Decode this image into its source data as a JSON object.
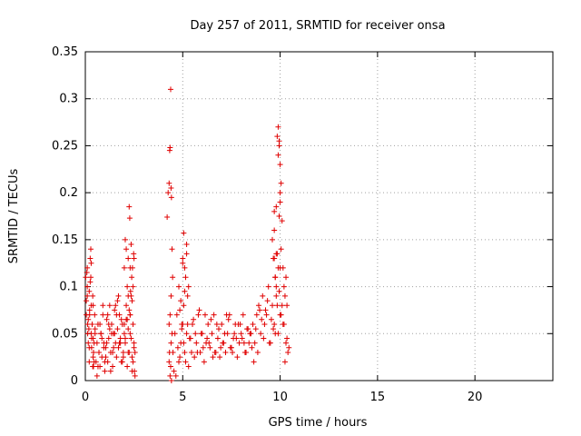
{
  "chart_data": {
    "type": "scatter",
    "title": "Day 257 of 2011, SRMTID for receiver onsa",
    "xlabel": "GPS time / hours",
    "ylabel": "SRMTID / TECUs",
    "xlim": [
      0,
      24
    ],
    "ylim": [
      0,
      0.35
    ],
    "xticks": [
      0,
      5,
      10,
      15,
      20
    ],
    "xtick_labels": [
      "0",
      "5",
      "10",
      "15",
      "20"
    ],
    "yticks": [
      0,
      0.05,
      0.1,
      0.15,
      0.2,
      0.25,
      0.3,
      0.35
    ],
    "ytick_labels": [
      "0",
      "0.05",
      "0.1",
      "0.15",
      "0.2",
      "0.25",
      "0.3",
      "0.35"
    ],
    "grid": true,
    "marker": "+",
    "color": "#e00000",
    "series": [
      {
        "x": [
          0.02,
          0.05,
          0.08,
          0.1,
          0.12,
          0.15,
          0.18,
          0.2,
          0.22,
          0.25,
          0.28,
          0.3,
          0.32,
          0.35,
          0.38,
          0.4,
          0.42,
          0.45,
          0.48,
          0.5,
          0.05,
          0.1,
          0.15,
          0.2,
          0.25,
          0.3,
          0.35,
          0.4,
          0.45,
          0.5,
          0.1,
          0.2,
          0.3,
          0.4,
          0.12,
          0.22,
          0.32,
          0.42,
          0.28,
          0.38,
          0.55,
          0.6,
          0.65,
          0.7,
          0.75,
          0.8,
          0.85,
          0.9,
          0.95,
          1.0,
          1.05,
          1.1,
          1.15,
          1.2,
          1.25,
          1.3,
          1.35,
          1.4,
          1.45,
          1.5,
          1.55,
          1.6,
          1.65,
          1.7,
          1.75,
          1.8,
          1.85,
          1.9,
          1.95,
          2.0,
          2.05,
          2.1,
          2.15,
          2.2,
          2.25,
          2.3,
          2.35,
          2.4,
          2.45,
          2.5,
          0.6,
          0.7,
          0.8,
          0.9,
          1.0,
          1.1,
          1.2,
          1.3,
          1.4,
          1.5,
          1.6,
          1.7,
          1.8,
          1.9,
          2.0,
          2.1,
          2.2,
          2.3,
          2.4,
          2.5,
          0.65,
          0.85,
          1.05,
          1.25,
          1.45,
          1.65,
          1.85,
          2.05,
          2.25,
          2.45,
          0.75,
          0.95,
          1.15,
          1.35,
          1.55,
          1.75,
          1.95,
          2.15,
          2.35,
          2.55,
          2.0,
          2.05,
          2.1,
          2.15,
          2.2,
          2.25,
          2.28,
          2.3,
          2.32,
          2.35,
          2.38,
          2.4,
          2.42,
          2.45,
          2.48,
          2.5,
          2.52,
          2.55,
          2.2,
          2.3,
          4.2,
          4.25,
          4.3,
          4.33,
          4.35,
          4.38,
          4.4,
          4.42,
          4.45,
          4.48,
          4.3,
          4.35,
          4.4,
          4.45,
          4.3,
          4.35,
          4.4,
          4.32,
          4.38,
          4.42,
          4.5,
          4.6,
          4.7,
          4.8,
          4.9,
          5.0,
          5.1,
          5.2,
          5.3,
          5.4,
          5.5,
          5.6,
          5.7,
          5.8,
          5.9,
          6.0,
          6.1,
          6.2,
          6.3,
          6.4,
          6.5,
          6.6,
          6.7,
          6.8,
          6.9,
          7.0,
          7.1,
          7.2,
          7.3,
          7.4,
          7.5,
          7.6,
          7.7,
          7.8,
          7.9,
          8.0,
          8.1,
          8.2,
          8.3,
          8.4,
          4.55,
          4.75,
          4.95,
          5.15,
          5.35,
          5.55,
          5.75,
          5.95,
          6.15,
          6.35,
          6.55,
          6.75,
          6.95,
          7.15,
          7.35,
          7.55,
          7.75,
          7.95,
          8.15,
          8.35,
          4.65,
          4.85,
          5.05,
          5.25,
          5.45,
          5.65,
          5.85,
          6.05,
          6.25,
          6.45,
          6.65,
          6.85,
          7.05,
          7.25,
          7.45,
          7.65,
          7.85,
          8.05,
          8.25,
          8.45,
          4.8,
          5.0,
          5.2,
          5.05,
          5.15,
          5.25,
          4.9,
          5.1,
          5.3,
          4.95,
          5.05,
          5.2,
          5.1,
          5.0,
          4.85,
          8.5,
          8.6,
          8.7,
          8.8,
          8.9,
          9.0,
          9.1,
          9.2,
          9.3,
          9.4,
          9.5,
          9.6,
          9.7,
          9.8,
          9.9,
          10.0,
          10.1,
          10.2,
          10.3,
          10.4,
          8.55,
          8.75,
          8.95,
          9.15,
          9.35,
          9.55,
          9.75,
          9.95,
          10.15,
          10.35,
          8.65,
          8.85,
          9.05,
          9.25,
          9.45,
          9.65,
          9.85,
          10.05,
          10.25,
          10.45,
          9.6,
          9.65,
          9.7,
          9.75,
          9.8,
          9.85,
          9.9,
          9.95,
          10.0,
          10.05,
          10.1,
          10.15,
          10.2,
          10.25,
          10.3,
          10.35,
          9.7,
          9.8,
          9.9,
          10.0,
          9.95,
          10.0,
          10.05,
          9.9,
          9.85,
          9.95,
          10.0,
          9.75,
          9.8,
          9.7
        ],
        "y": [
          0.11,
          0.07,
          0.115,
          0.09,
          0.06,
          0.04,
          0.055,
          0.02,
          0.075,
          0.13,
          0.14,
          0.05,
          0.035,
          0.06,
          0.015,
          0.045,
          0.03,
          0.02,
          0.07,
          0.05,
          0.085,
          0.1,
          0.065,
          0.035,
          0.105,
          0.08,
          0.06,
          0.025,
          0.04,
          0.055,
          0.12,
          0.095,
          0.125,
          0.08,
          0.05,
          0.07,
          0.045,
          0.015,
          0.11,
          0.09,
          0.02,
          0.04,
          0.06,
          0.03,
          0.015,
          0.05,
          0.025,
          0.07,
          0.04,
          0.01,
          0.035,
          0.065,
          0.02,
          0.045,
          0.08,
          0.03,
          0.06,
          0.015,
          0.05,
          0.075,
          0.04,
          0.025,
          0.055,
          0.035,
          0.07,
          0.045,
          0.02,
          0.06,
          0.03,
          0.05,
          0.04,
          0.065,
          0.015,
          0.055,
          0.03,
          0.07,
          0.045,
          0.025,
          0.06,
          0.035,
          0.005,
          0.03,
          0.05,
          0.08,
          0.02,
          0.04,
          0.06,
          0.01,
          0.03,
          0.05,
          0.07,
          0.09,
          0.04,
          0.02,
          0.06,
          0.08,
          0.03,
          0.05,
          0.01,
          0.04,
          0.015,
          0.045,
          0.025,
          0.055,
          0.035,
          0.085,
          0.065,
          0.045,
          0.075,
          0.02,
          0.06,
          0.035,
          0.07,
          0.05,
          0.08,
          0.04,
          0.025,
          0.065,
          0.09,
          0.03,
          0.12,
          0.15,
          0.14,
          0.1,
          0.13,
          0.185,
          0.173,
          0.12,
          0.095,
          0.145,
          0.11,
          0.085,
          0.12,
          0.1,
          0.135,
          0.13,
          0.01,
          0.005,
          0.09,
          0.07,
          0.174,
          0.2,
          0.21,
          0.245,
          0.248,
          0.31,
          0.205,
          0.195,
          0.14,
          0.11,
          0.06,
          0.07,
          0.04,
          0.05,
          0.02,
          0.005,
          0.09,
          0.03,
          0.015,
          0.0,
          0.03,
          0.05,
          0.07,
          0.02,
          0.04,
          0.06,
          0.03,
          0.05,
          0.015,
          0.045,
          0.06,
          0.025,
          0.04,
          0.07,
          0.03,
          0.05,
          0.02,
          0.04,
          0.06,
          0.035,
          0.05,
          0.07,
          0.03,
          0.045,
          0.025,
          0.06,
          0.04,
          0.03,
          0.05,
          0.07,
          0.035,
          0.045,
          0.06,
          0.025,
          0.04,
          0.05,
          0.07,
          0.03,
          0.055,
          0.04,
          0.01,
          0.035,
          0.055,
          0.02,
          0.045,
          0.065,
          0.03,
          0.05,
          0.07,
          0.04,
          0.025,
          0.06,
          0.035,
          0.05,
          0.065,
          0.03,
          0.045,
          0.06,
          0.04,
          0.055,
          0.005,
          0.025,
          0.04,
          0.06,
          0.03,
          0.05,
          0.075,
          0.035,
          0.045,
          0.065,
          0.03,
          0.055,
          0.04,
          0.07,
          0.035,
          0.05,
          0.06,
          0.045,
          0.03,
          0.05,
          0.1,
          0.125,
          0.135,
          0.157,
          0.11,
          0.09,
          0.085,
          0.12,
          0.1,
          0.06,
          0.08,
          0.145,
          0.095,
          0.13,
          0.075,
          0.05,
          0.06,
          0.04,
          0.07,
          0.08,
          0.05,
          0.09,
          0.06,
          0.07,
          0.1,
          0.04,
          0.08,
          0.06,
          0.09,
          0.05,
          0.07,
          0.08,
          0.06,
          0.04,
          0.03,
          0.035,
          0.055,
          0.075,
          0.045,
          0.085,
          0.065,
          0.05,
          0.095,
          0.06,
          0.045,
          0.02,
          0.03,
          0.065,
          0.075,
          0.04,
          0.055,
          0.08,
          0.07,
          0.02,
          0.035,
          0.15,
          0.13,
          0.18,
          0.11,
          0.135,
          0.26,
          0.27,
          0.255,
          0.23,
          0.21,
          0.17,
          0.12,
          0.1,
          0.09,
          0.11,
          0.08,
          0.16,
          0.185,
          0.24,
          0.2,
          0.25,
          0.19,
          0.14,
          0.12,
          0.135,
          0.175,
          0.12,
          0.11,
          0.1,
          0.13
        ]
      }
    ]
  }
}
